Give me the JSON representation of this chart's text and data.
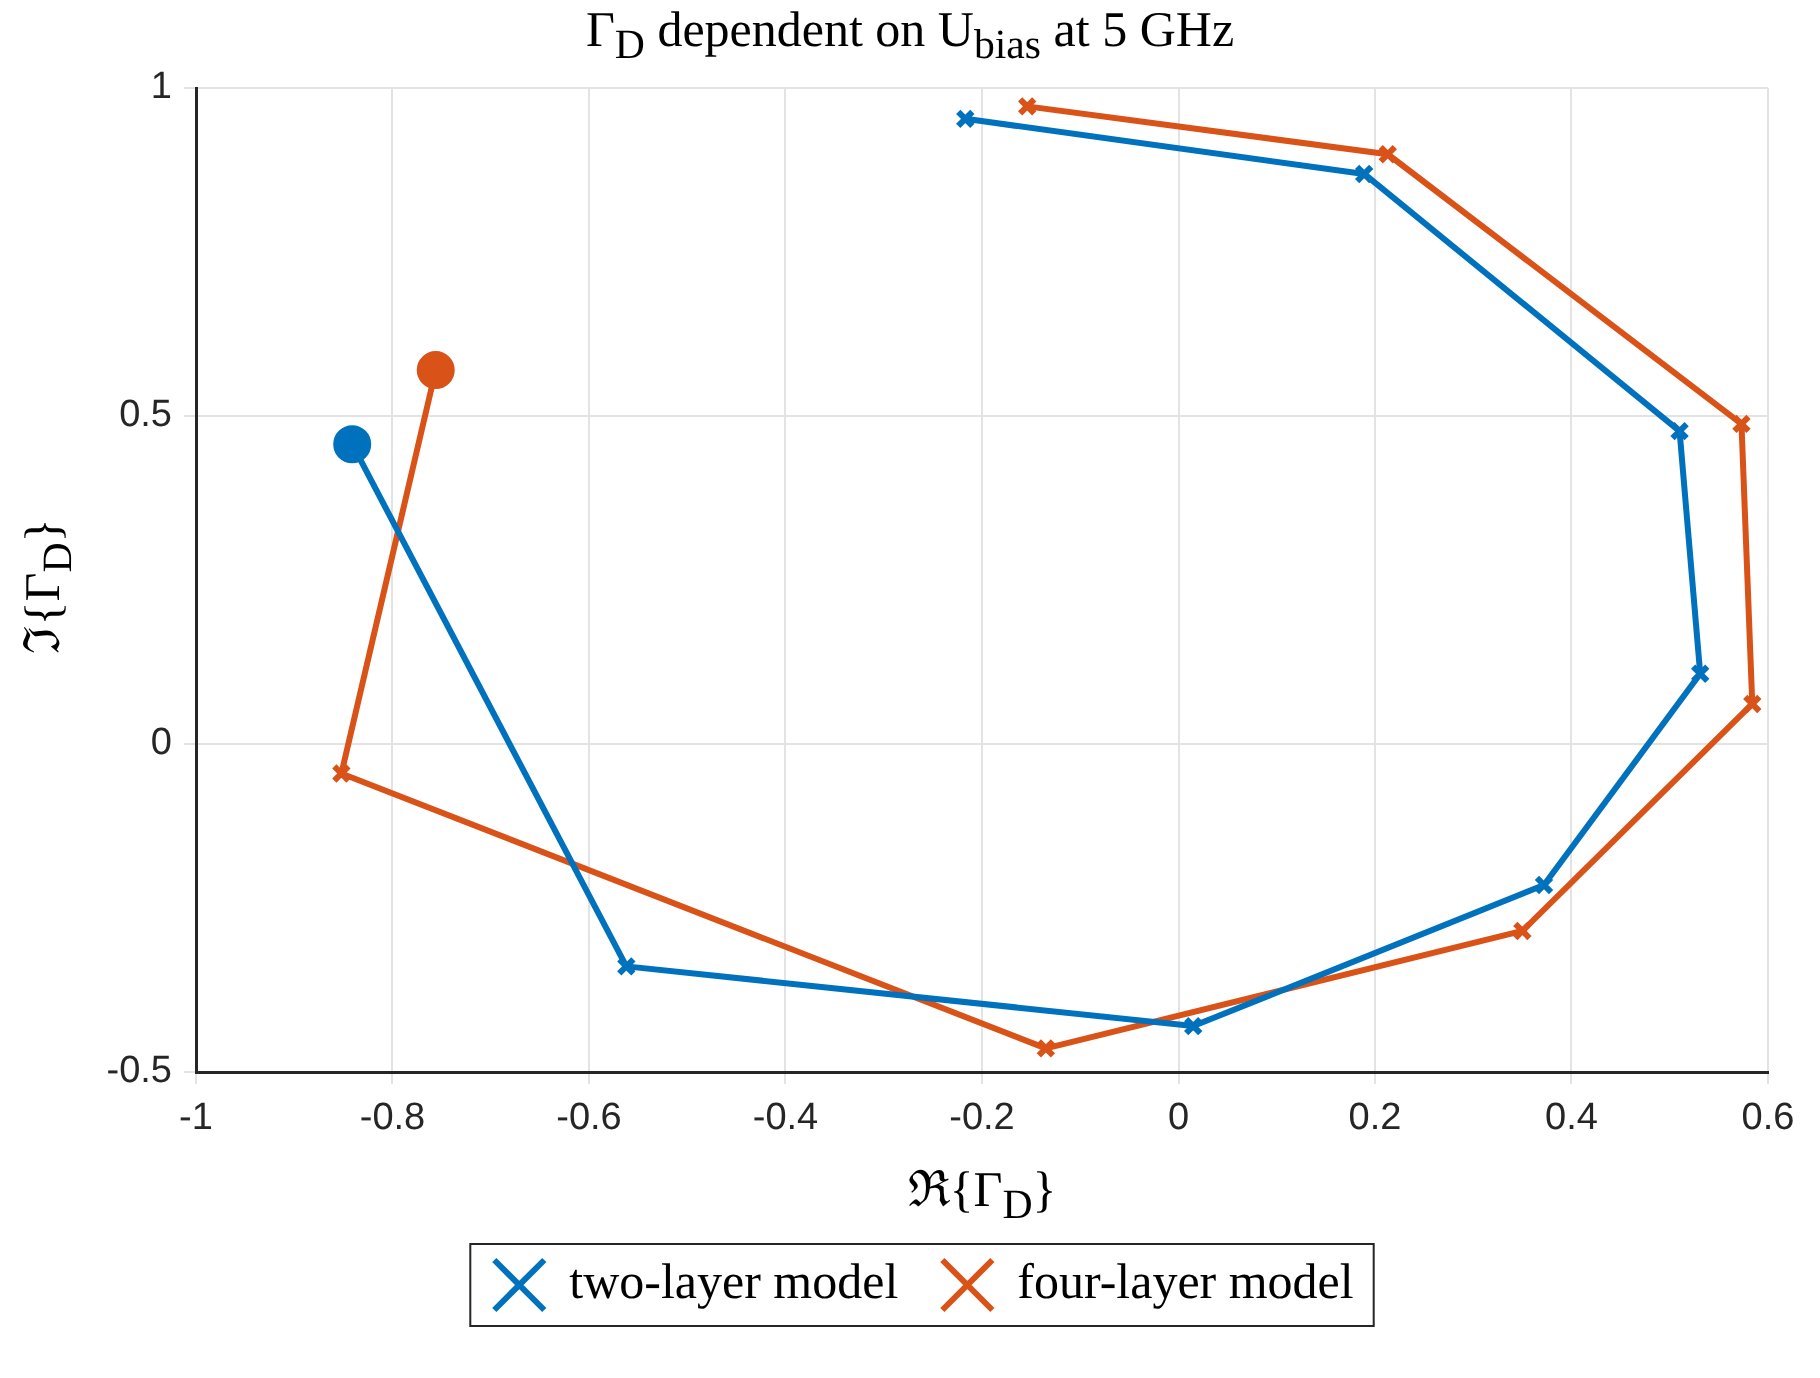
{
  "chart_data": {
    "type": "line",
    "title": "Γ$_{D}$ dependent on U$_{bias}$ at 5 GHz",
    "xlabel": "ℜ{Γ$_{D}$}",
    "ylabel": "ℑ{Γ$_{D}$}",
    "xlim": [
      -1,
      0.6
    ],
    "xticks": [
      -1,
      -0.8,
      -0.6,
      -0.4,
      -0.2,
      0,
      0.2,
      0.4,
      0.6
    ],
    "ylim": [
      -0.5,
      1
    ],
    "yticks": [
      -0.5,
      0,
      0.5,
      1
    ],
    "grid": true,
    "legend": "bottom",
    "marker": "cross",
    "line_style": "solid",
    "series": [
      {
        "name": "two-layer model",
        "color": "#0072bd",
        "x": [
          -0.841,
          -0.562,
          0.015,
          0.372,
          0.531,
          0.51,
          0.189,
          -0.217
        ],
        "values": [
          0.457,
          -0.339,
          -0.43,
          -0.215,
          0.107,
          0.477,
          0.869,
          0.953
        ]
      },
      {
        "name": "four-layer model",
        "color": "#d95319",
        "x": [
          -0.756,
          -0.852,
          -0.135,
          0.35,
          0.584,
          0.573,
          0.213,
          -0.154
        ],
        "values": [
          0.57,
          -0.045,
          -0.464,
          -0.285,
          0.061,
          0.488,
          0.899,
          0.972
        ]
      },
      {
        "type": "scatter",
        "marker": "circle",
        "color": "#0072bd",
        "x": [
          -0.841
        ],
        "values": [
          0.457
        ]
      },
      {
        "type": "scatter",
        "marker": "circle",
        "color": "#d95319",
        "x": [
          -0.756
        ],
        "values": [
          0.57
        ]
      }
    ]
  }
}
